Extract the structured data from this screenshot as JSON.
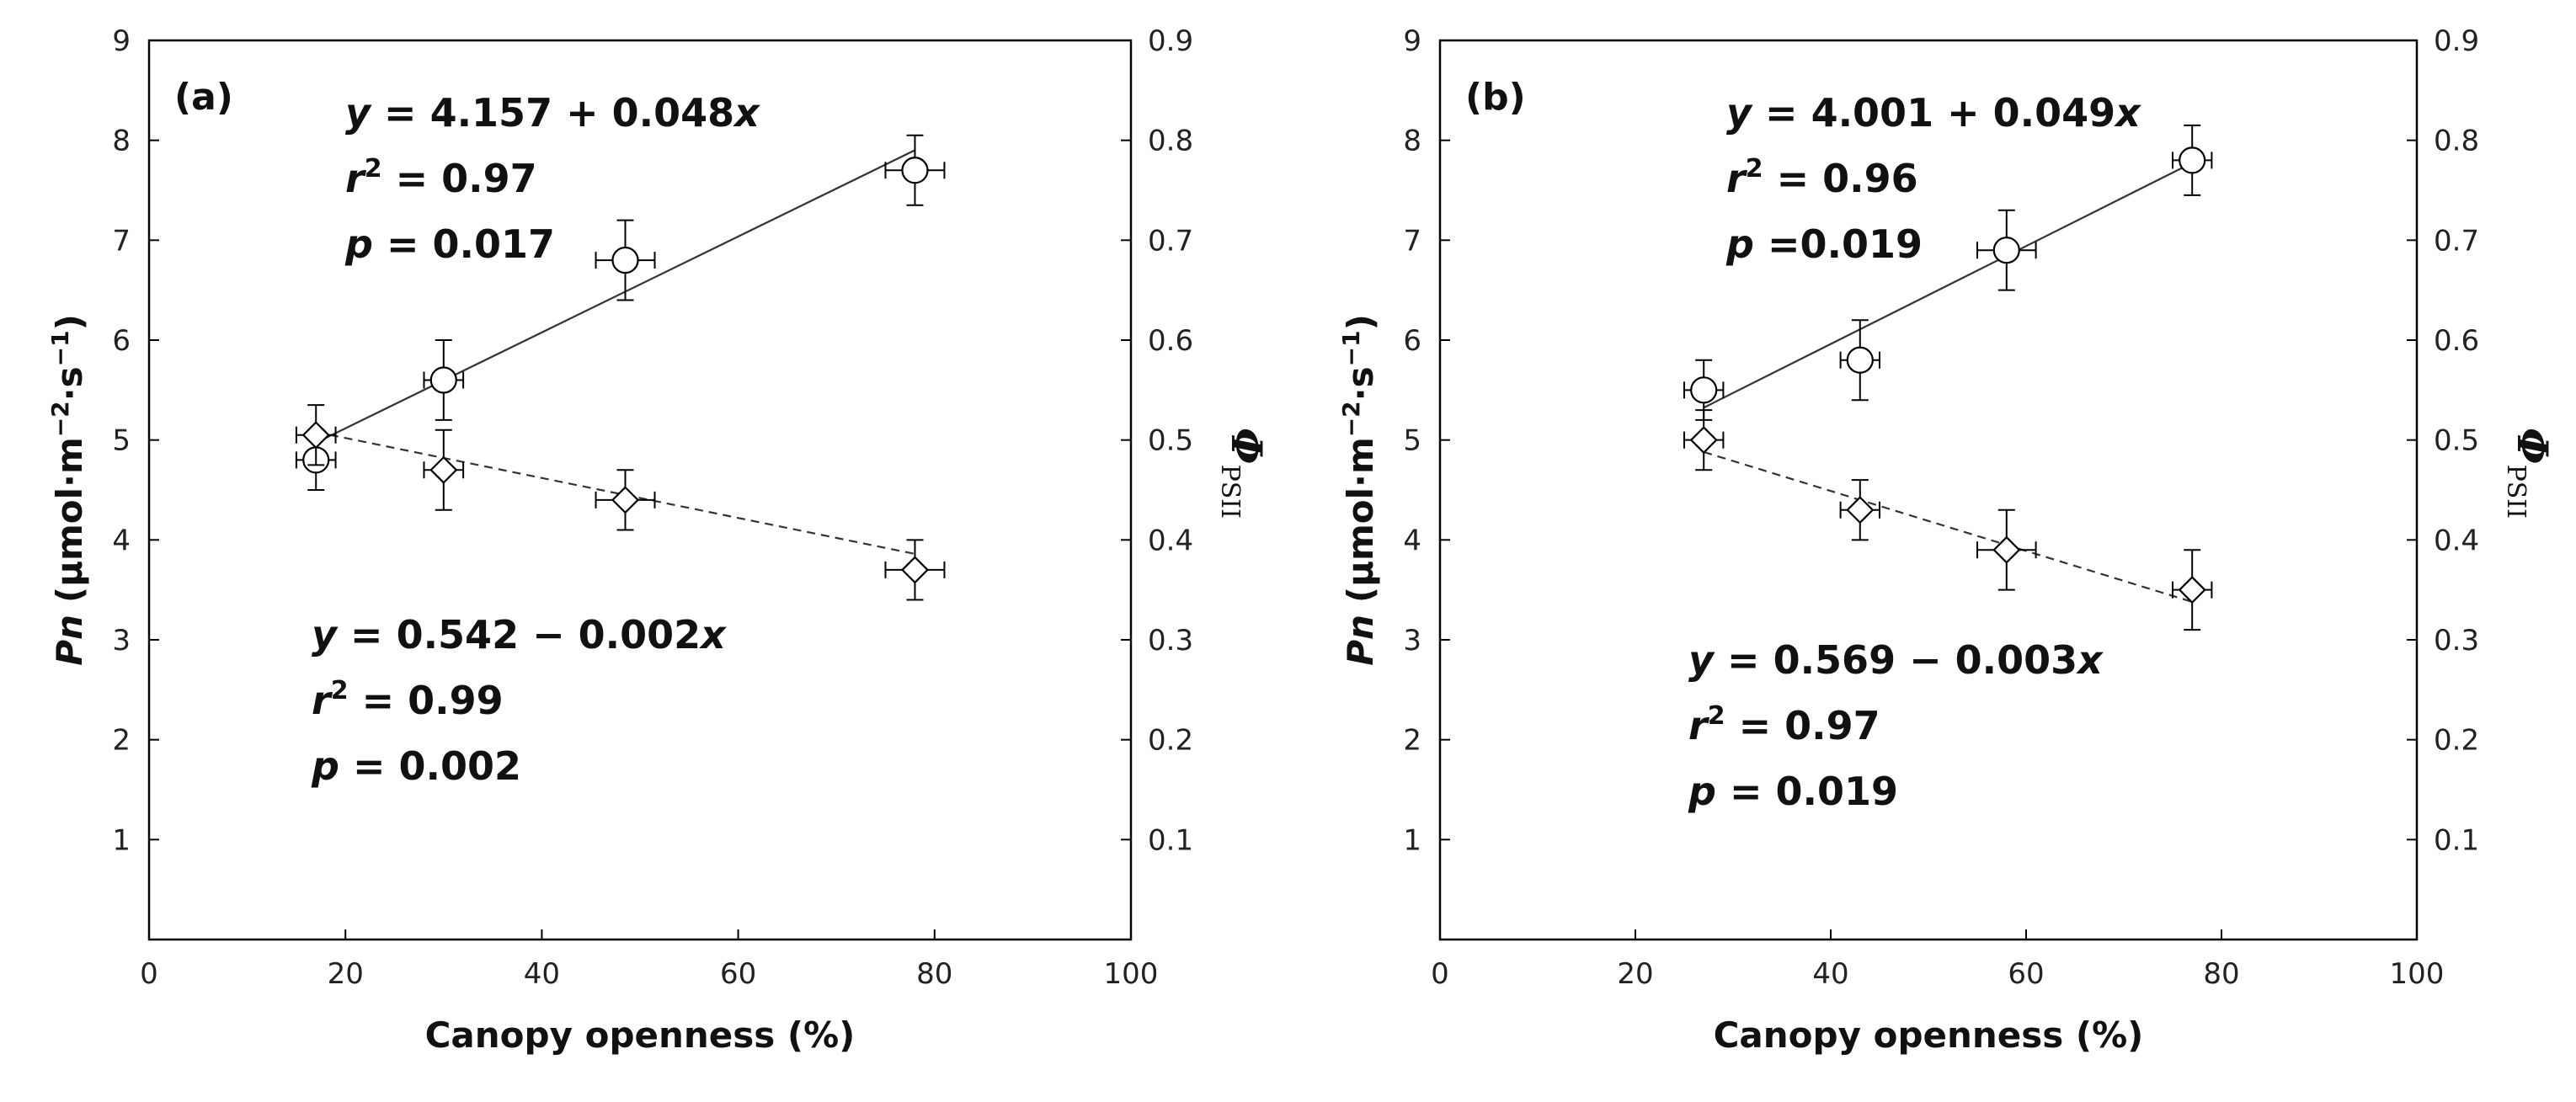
{
  "chart_data": [
    {
      "type": "scatter",
      "panel_label": "(a)",
      "xlabel": "Canopy openness (%)",
      "ylabel_var": "Pn",
      "ylabel_units": "(µmol·m",
      "ylabel_exp1": "−2",
      "ylabel_mid": "·s",
      "ylabel_exp2": "−1",
      "ylabel_close": ")",
      "y2label_var": "Φ",
      "y2label_sub": "PSII",
      "xlim": [
        0,
        100
      ],
      "ylim": [
        0,
        9
      ],
      "y2lim": [
        0,
        0.9
      ],
      "x_ticks": [
        "0",
        "20",
        "40",
        "60",
        "80",
        "100"
      ],
      "y_ticks": [
        "1",
        "2",
        "3",
        "4",
        "5",
        "6",
        "7",
        "8",
        "9"
      ],
      "y2_ticks": [
        "0.1",
        "0.2",
        "0.3",
        "0.4",
        "0.5",
        "0.6",
        "0.7",
        "0.8",
        "0.9"
      ],
      "series": [
        {
          "name": "Pn",
          "marker": "circle",
          "axis": "left",
          "x": [
            17,
            30,
            48.5,
            78
          ],
          "y": [
            4.8,
            5.6,
            6.8,
            7.7
          ],
          "xerr": [
            2,
            2,
            3,
            3
          ],
          "yerr": [
            0.3,
            0.4,
            0.4,
            0.35
          ],
          "fit": {
            "intercept": 4.157,
            "slope": 0.048,
            "style": "solid"
          },
          "equation": {
            "y_lead": "y",
            "body": " = 4.157 + 0.048",
            "x_trail": "x",
            "r_letter": "r",
            "r_exp": "2",
            "r_value": " = 0.97",
            "p_letter": "p",
            "p_value": " = 0.017"
          }
        },
        {
          "name": "ΦPSII",
          "marker": "diamond",
          "axis": "right",
          "x": [
            17,
            30,
            48.5,
            78
          ],
          "y": [
            0.505,
            0.47,
            0.44,
            0.37
          ],
          "xerr": [
            2,
            2,
            3,
            3
          ],
          "yerr": [
            0.03,
            0.04,
            0.03,
            0.03
          ],
          "fit": {
            "intercept": 0.542,
            "slope": -0.002,
            "style": "dashed"
          },
          "equation": {
            "y_lead": "y",
            "body": " = 0.542 − 0.002",
            "x_trail": "x",
            "r_letter": "r",
            "r_exp": "2",
            "r_value": " = 0.99",
            "p_letter": "p",
            "p_value": " = 0.002"
          }
        }
      ]
    },
    {
      "type": "scatter",
      "panel_label": "(b)",
      "xlabel": "Canopy openness (%)",
      "ylabel_var": "Pn",
      "ylabel_units": "(µmol·m",
      "ylabel_exp1": "−2",
      "ylabel_mid": "·s",
      "ylabel_exp2": "−1",
      "ylabel_close": ")",
      "y2label_var": "Φ",
      "y2label_sub": "PSII",
      "xlim": [
        0,
        100
      ],
      "ylim": [
        0,
        9
      ],
      "y2lim": [
        0,
        0.9
      ],
      "x_ticks": [
        "0",
        "20",
        "40",
        "60",
        "80",
        "100"
      ],
      "y_ticks": [
        "1",
        "2",
        "3",
        "4",
        "5",
        "6",
        "7",
        "8",
        "9"
      ],
      "y2_ticks": [
        "0.1",
        "0.2",
        "0.3",
        "0.4",
        "0.5",
        "0.6",
        "0.7",
        "0.8",
        "0.9"
      ],
      "series": [
        {
          "name": "Pn",
          "marker": "circle",
          "axis": "left",
          "x": [
            27,
            43,
            58,
            77
          ],
          "y": [
            5.5,
            5.8,
            6.9,
            7.8
          ],
          "xerr": [
            2,
            2,
            3,
            2
          ],
          "yerr": [
            0.3,
            0.4,
            0.4,
            0.35
          ],
          "fit": {
            "intercept": 4.001,
            "slope": 0.049,
            "style": "solid"
          },
          "equation": {
            "y_lead": "y",
            "body": " = 4.001 + 0.049",
            "x_trail": "x",
            "r_letter": "r",
            "r_exp": "2",
            "r_value": " = 0.96",
            "p_letter": "p",
            "p_value": " =0.019"
          }
        },
        {
          "name": "ΦPSII",
          "marker": "diamond",
          "axis": "right",
          "x": [
            27,
            43,
            58,
            77
          ],
          "y": [
            0.5,
            0.43,
            0.39,
            0.35
          ],
          "xerr": [
            2,
            2,
            3,
            2
          ],
          "yerr": [
            0.03,
            0.03,
            0.04,
            0.04
          ],
          "fit": {
            "intercept": 0.569,
            "slope": -0.003,
            "style": "dashed"
          },
          "equation": {
            "y_lead": "y",
            "body": " = 0.569 − 0.003",
            "x_trail": "x",
            "r_letter": "r",
            "r_exp": "2",
            "r_value": " = 0.97",
            "p_letter": "p",
            "p_value": " = 0.019"
          }
        }
      ]
    }
  ]
}
